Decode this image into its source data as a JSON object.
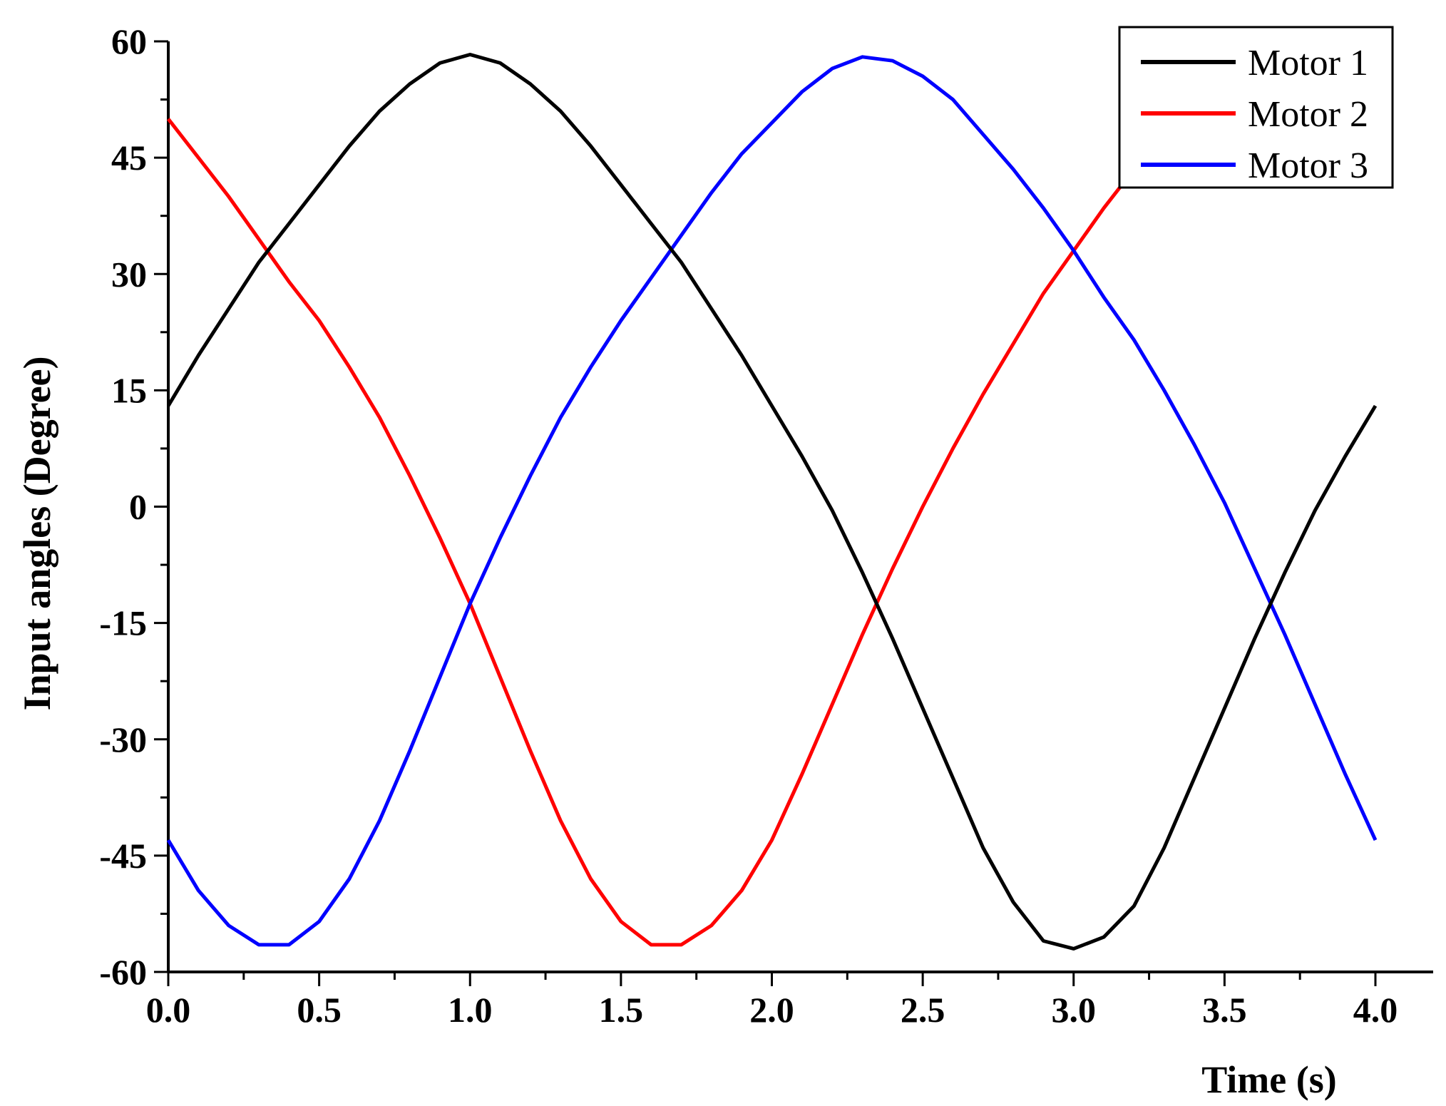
{
  "chart_data": {
    "type": "line",
    "title": "",
    "xlabel": "Time (s)",
    "ylabel": "Input angles (Degree)",
    "xlim": [
      0,
      4.2
    ],
    "ylim": [
      -60,
      60
    ],
    "xticks": [
      "0.0",
      "0.5",
      "1.0",
      "1.5",
      "2.0",
      "2.5",
      "3.0",
      "3.5",
      "4.0"
    ],
    "xtick_values": [
      0,
      0.5,
      1.0,
      1.5,
      2.0,
      2.5,
      3.0,
      3.5,
      4.0
    ],
    "yticks": [
      "60",
      "45",
      "30",
      "15",
      "0",
      "-15",
      "-30",
      "-45",
      "-60"
    ],
    "ytick_values": [
      60,
      45,
      30,
      15,
      0,
      -15,
      -30,
      -45,
      -60
    ],
    "grid": false,
    "legend_position": "top-right",
    "x": [
      0.0,
      0.1,
      0.2,
      0.3,
      0.4,
      0.5,
      0.6,
      0.7,
      0.8,
      0.9,
      1.0,
      1.1,
      1.2,
      1.3,
      1.4,
      1.5,
      1.6,
      1.7,
      1.8,
      1.9,
      2.0,
      2.1,
      2.2,
      2.3,
      2.4,
      2.5,
      2.6,
      2.7,
      2.8,
      2.9,
      3.0,
      3.1,
      3.2,
      3.3,
      3.4,
      3.5,
      3.6,
      3.7,
      3.8,
      3.9,
      4.0
    ],
    "series": [
      {
        "name": "Motor 1",
        "color": "#000000",
        "values": [
          13.0,
          19.5,
          25.5,
          31.5,
          36.5,
          41.5,
          46.5,
          51.0,
          54.5,
          57.2,
          58.3,
          57.2,
          54.5,
          51.0,
          46.5,
          41.5,
          36.5,
          31.5,
          25.5,
          19.5,
          13.0,
          6.5,
          -0.5,
          -8.5,
          -17.0,
          -26.0,
          -35.0,
          -44.0,
          -51.0,
          -56.0,
          -57.0,
          -55.5,
          -51.5,
          -44.0,
          -35.0,
          -26.0,
          -17.0,
          -8.5,
          -0.5,
          6.5,
          13.0
        ]
      },
      {
        "name": "Motor 2",
        "color": "#ff0000",
        "values": [
          50.0,
          45.0,
          40.0,
          34.5,
          29.0,
          24.0,
          18.0,
          11.5,
          4.0,
          -4.0,
          -12.5,
          -22.0,
          -31.5,
          -40.5,
          -48.0,
          -53.5,
          -56.5,
          -56.5,
          -54.0,
          -49.5,
          -43.0,
          -34.5,
          -25.5,
          -16.5,
          -8.0,
          0.0,
          7.5,
          14.5,
          21.0,
          27.5,
          33.0,
          38.5,
          43.5,
          47.5,
          51.0,
          53.5,
          55.5,
          57.0,
          57.5,
          56.5,
          54.5
        ]
      },
      {
        "name": "Motor 3",
        "color": "#0000ff",
        "values": [
          -43.0,
          -49.5,
          -54.0,
          -56.5,
          -56.5,
          -53.5,
          -48.0,
          -40.5,
          -31.5,
          -22.0,
          -12.5,
          -4.0,
          4.0,
          11.5,
          18.0,
          24.0,
          29.5,
          35.0,
          40.5,
          45.5,
          49.5,
          53.5,
          56.5,
          58.0,
          57.5,
          55.5,
          52.5,
          48.0,
          43.5,
          38.5,
          33.0,
          27.0,
          21.5,
          15.0,
          8.0,
          0.5,
          -8.0,
          -16.5,
          -25.5,
          -34.5,
          -43.0
        ]
      }
    ]
  }
}
